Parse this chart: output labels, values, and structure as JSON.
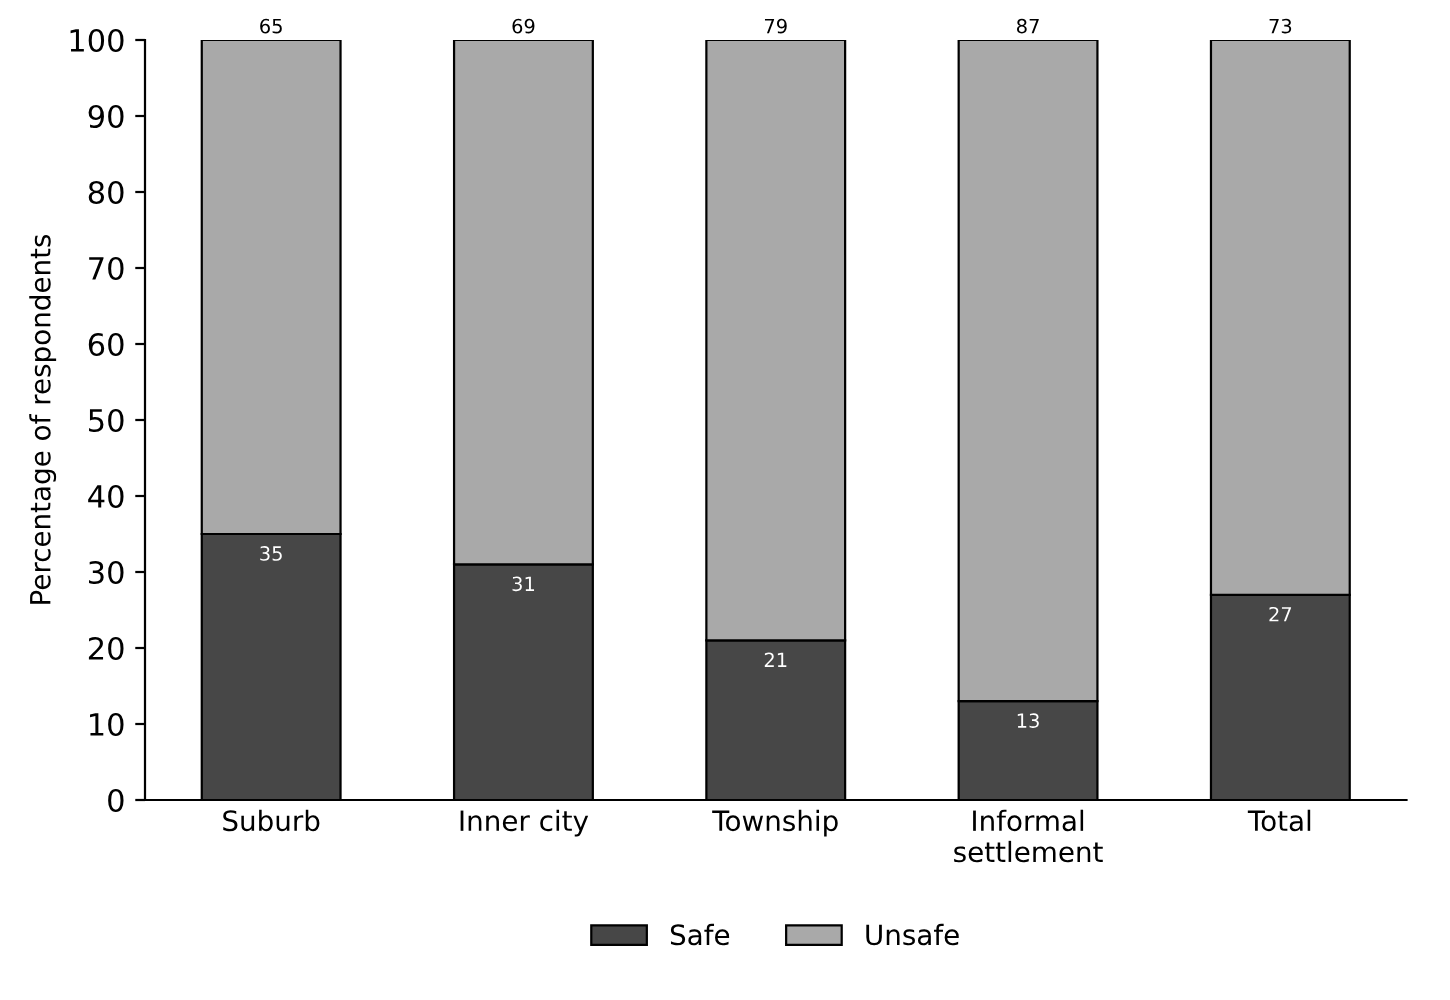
{
  "chart_data": {
    "type": "bar",
    "stacked": true,
    "ylabel": "Percentage of respondents",
    "categories": [
      "Suburb",
      "Inner city",
      "Township",
      "Informal\nsettlement",
      "Total"
    ],
    "series": [
      {
        "name": "Safe",
        "color": "#474747",
        "values": [
          35,
          31,
          21,
          13,
          27
        ]
      },
      {
        "name": "Unsafe",
        "color": "#a9a9a9",
        "values": [
          65,
          69,
          79,
          87,
          73
        ]
      }
    ],
    "ylim": [
      0,
      100
    ],
    "yticks": [
      0,
      10,
      20,
      30,
      40,
      50,
      60,
      70,
      80,
      90,
      100
    ],
    "data_labels": true,
    "grid": false,
    "legend": "bottom"
  }
}
